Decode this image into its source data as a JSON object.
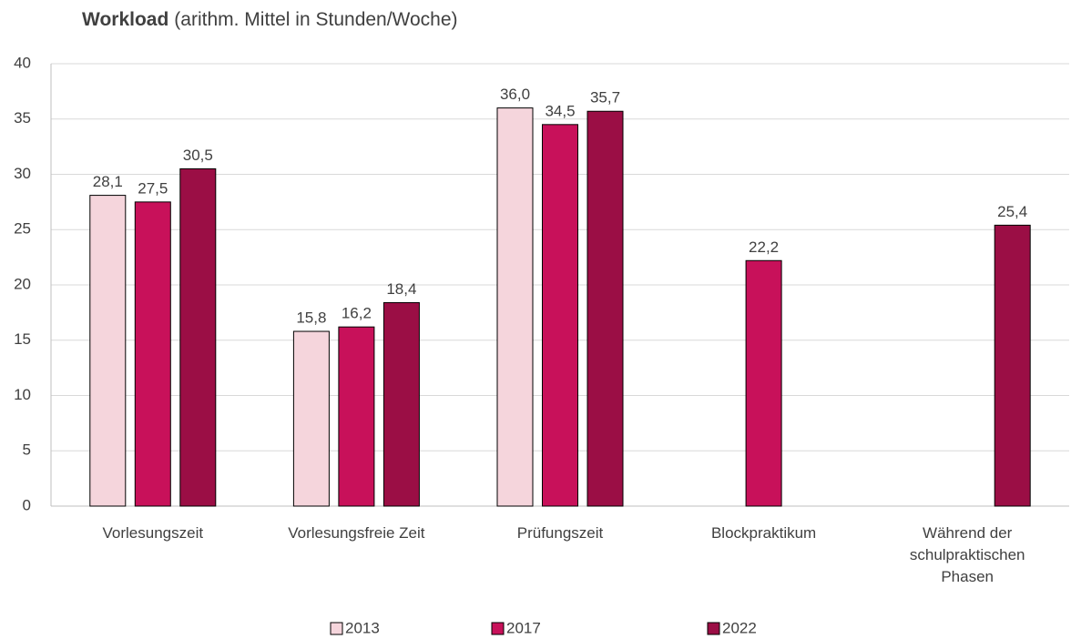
{
  "chart_data": {
    "type": "bar",
    "title": "Workload",
    "subtitle": "(arithm. Mittel in Stunden/Woche)",
    "categories": [
      "Vorlesungszeit",
      "Vorlesungsfreie Zeit",
      "Prüfungszeit",
      "Blockpraktikum",
      "Während der schulpraktischen Phasen"
    ],
    "series": [
      {
        "name": "2013",
        "color": "#f5d5dc",
        "values": [
          28.1,
          15.8,
          36.0,
          null,
          null
        ],
        "value_labels": [
          "28,1",
          "15,8",
          "36,0",
          null,
          null
        ]
      },
      {
        "name": "2017",
        "color": "#c8115a",
        "values": [
          27.5,
          16.2,
          34.5,
          22.2,
          null
        ],
        "value_labels": [
          "27,5",
          "16,2",
          "34,5",
          "22,2",
          null
        ]
      },
      {
        "name": "2022",
        "color": "#9b0e45",
        "values": [
          30.5,
          18.4,
          35.7,
          null,
          25.4
        ],
        "value_labels": [
          "30,5",
          "18,4",
          "35,7",
          null,
          "25,4"
        ]
      }
    ],
    "ylim": [
      0,
      40
    ],
    "yticks": [
      0,
      5,
      10,
      15,
      20,
      25,
      30,
      35,
      40
    ],
    "grid": true,
    "legend": "bottom"
  }
}
